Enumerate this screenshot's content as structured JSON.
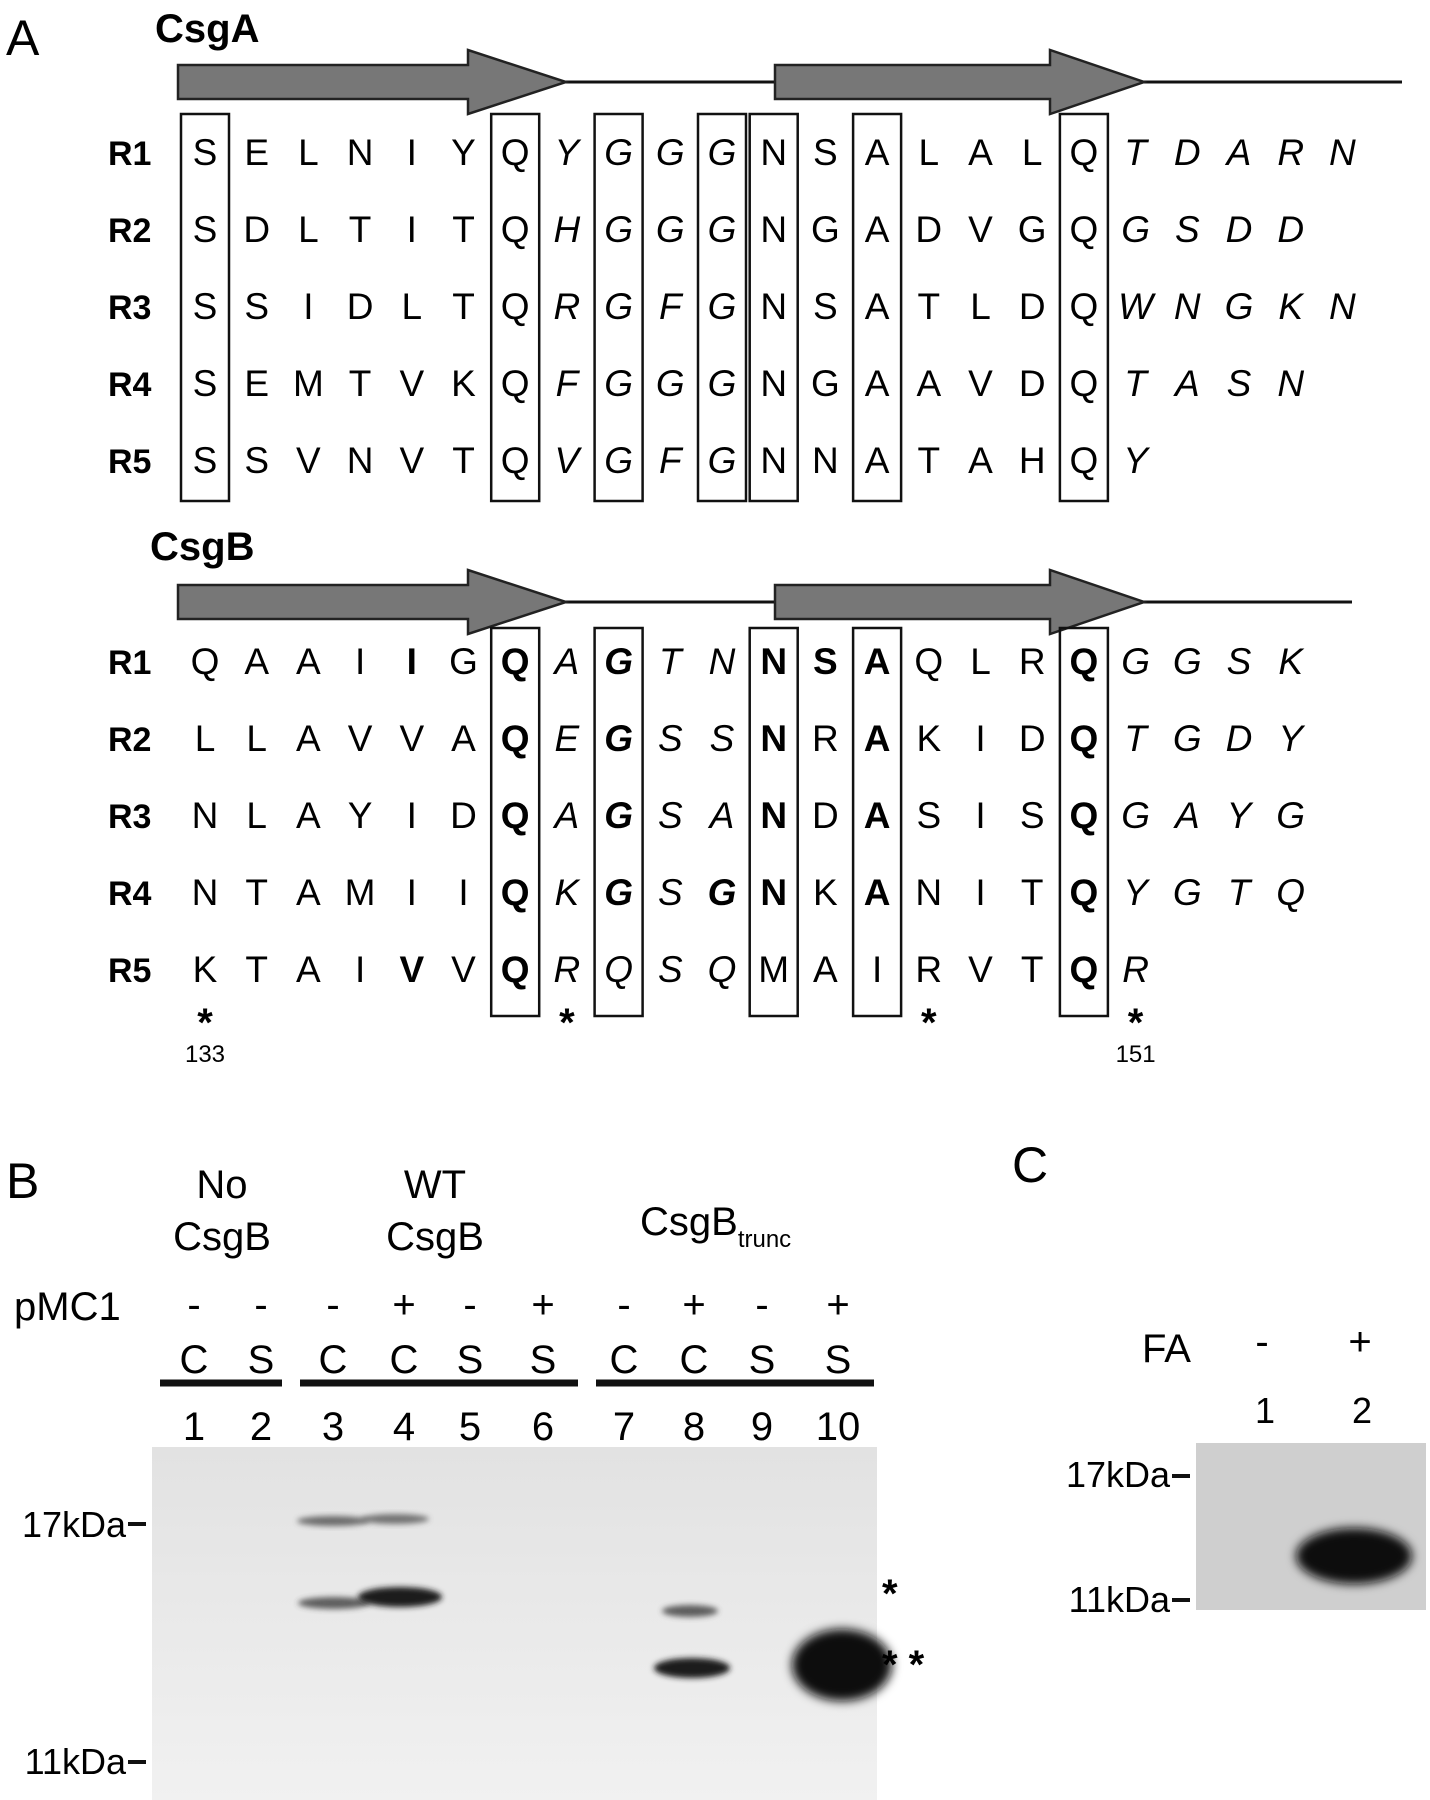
{
  "panel_a": {
    "letter": "A",
    "csga": {
      "title": "CsgA",
      "rows": [
        {
          "label": "R1",
          "residues": [
            {
              "c": "S",
              "s": "n"
            },
            {
              "c": "E",
              "s": "n"
            },
            {
              "c": "L",
              "s": "n"
            },
            {
              "c": "N",
              "s": "n"
            },
            {
              "c": "I",
              "s": "n"
            },
            {
              "c": "Y",
              "s": "n"
            },
            {
              "c": "Q",
              "s": "n"
            },
            {
              "c": "Y",
              "s": "i"
            },
            {
              "c": "G",
              "s": "i"
            },
            {
              "c": "G",
              "s": "i"
            },
            {
              "c": "G",
              "s": "i"
            },
            {
              "c": "N",
              "s": "n"
            },
            {
              "c": "S",
              "s": "n"
            },
            {
              "c": "A",
              "s": "n"
            },
            {
              "c": "L",
              "s": "n"
            },
            {
              "c": "A",
              "s": "n"
            },
            {
              "c": "L",
              "s": "n"
            },
            {
              "c": "Q",
              "s": "n"
            },
            {
              "c": "T",
              "s": "i"
            },
            {
              "c": "D",
              "s": "i"
            },
            {
              "c": "A",
              "s": "i"
            },
            {
              "c": "R",
              "s": "i"
            },
            {
              "c": "N",
              "s": "i"
            }
          ]
        },
        {
          "label": "R2",
          "residues": [
            {
              "c": "S",
              "s": "n"
            },
            {
              "c": "D",
              "s": "n"
            },
            {
              "c": "L",
              "s": "n"
            },
            {
              "c": "T",
              "s": "n"
            },
            {
              "c": "I",
              "s": "n"
            },
            {
              "c": "T",
              "s": "n"
            },
            {
              "c": "Q",
              "s": "n"
            },
            {
              "c": "H",
              "s": "i"
            },
            {
              "c": "G",
              "s": "i"
            },
            {
              "c": "G",
              "s": "i"
            },
            {
              "c": "G",
              "s": "i"
            },
            {
              "c": "N",
              "s": "n"
            },
            {
              "c": "G",
              "s": "n"
            },
            {
              "c": "A",
              "s": "n"
            },
            {
              "c": "D",
              "s": "n"
            },
            {
              "c": "V",
              "s": "n"
            },
            {
              "c": "G",
              "s": "n"
            },
            {
              "c": "Q",
              "s": "n"
            },
            {
              "c": "G",
              "s": "i"
            },
            {
              "c": "S",
              "s": "i"
            },
            {
              "c": "D",
              "s": "i"
            },
            {
              "c": "D",
              "s": "i"
            }
          ]
        },
        {
          "label": "R3",
          "residues": [
            {
              "c": "S",
              "s": "n"
            },
            {
              "c": "S",
              "s": "n"
            },
            {
              "c": "I",
              "s": "n"
            },
            {
              "c": "D",
              "s": "n"
            },
            {
              "c": "L",
              "s": "n"
            },
            {
              "c": "T",
              "s": "n"
            },
            {
              "c": "Q",
              "s": "n"
            },
            {
              "c": "R",
              "s": "i"
            },
            {
              "c": "G",
              "s": "i"
            },
            {
              "c": "F",
              "s": "i"
            },
            {
              "c": "G",
              "s": "i"
            },
            {
              "c": "N",
              "s": "n"
            },
            {
              "c": "S",
              "s": "n"
            },
            {
              "c": "A",
              "s": "n"
            },
            {
              "c": "T",
              "s": "n"
            },
            {
              "c": "L",
              "s": "n"
            },
            {
              "c": "D",
              "s": "n"
            },
            {
              "c": "Q",
              "s": "n"
            },
            {
              "c": "W",
              "s": "i"
            },
            {
              "c": "N",
              "s": "i"
            },
            {
              "c": "G",
              "s": "i"
            },
            {
              "c": "K",
              "s": "i"
            },
            {
              "c": "N",
              "s": "i"
            }
          ]
        },
        {
          "label": "R4",
          "residues": [
            {
              "c": "S",
              "s": "n"
            },
            {
              "c": "E",
              "s": "n"
            },
            {
              "c": "M",
              "s": "n"
            },
            {
              "c": "T",
              "s": "n"
            },
            {
              "c": "V",
              "s": "n"
            },
            {
              "c": "K",
              "s": "n"
            },
            {
              "c": "Q",
              "s": "n"
            },
            {
              "c": "F",
              "s": "i"
            },
            {
              "c": "G",
              "s": "i"
            },
            {
              "c": "G",
              "s": "i"
            },
            {
              "c": "G",
              "s": "i"
            },
            {
              "c": "N",
              "s": "n"
            },
            {
              "c": "G",
              "s": "n"
            },
            {
              "c": "A",
              "s": "n"
            },
            {
              "c": "A",
              "s": "n"
            },
            {
              "c": "V",
              "s": "n"
            },
            {
              "c": "D",
              "s": "n"
            },
            {
              "c": "Q",
              "s": "n"
            },
            {
              "c": "T",
              "s": "i"
            },
            {
              "c": "A",
              "s": "i"
            },
            {
              "c": "S",
              "s": "i"
            },
            {
              "c": "N",
              "s": "i"
            }
          ]
        },
        {
          "label": "R5",
          "residues": [
            {
              "c": "S",
              "s": "n"
            },
            {
              "c": "S",
              "s": "n"
            },
            {
              "c": "V",
              "s": "n"
            },
            {
              "c": "N",
              "s": "n"
            },
            {
              "c": "V",
              "s": "n"
            },
            {
              "c": "T",
              "s": "n"
            },
            {
              "c": "Q",
              "s": "n"
            },
            {
              "c": "V",
              "s": "i"
            },
            {
              "c": "G",
              "s": "i"
            },
            {
              "c": "F",
              "s": "i"
            },
            {
              "c": "G",
              "s": "i"
            },
            {
              "c": "N",
              "s": "n"
            },
            {
              "c": "N",
              "s": "n"
            },
            {
              "c": "A",
              "s": "n"
            },
            {
              "c": "T",
              "s": "n"
            },
            {
              "c": "A",
              "s": "n"
            },
            {
              "c": "H",
              "s": "n"
            },
            {
              "c": "Q",
              "s": "n"
            },
            {
              "c": "Y",
              "s": "i"
            }
          ]
        }
      ]
    },
    "csgb": {
      "title": "CsgB",
      "rows": [
        {
          "label": "R1",
          "residues": [
            {
              "c": "Q",
              "s": "n"
            },
            {
              "c": "A",
              "s": "n"
            },
            {
              "c": "A",
              "s": "n"
            },
            {
              "c": "I",
              "s": "n"
            },
            {
              "c": "I",
              "s": "b"
            },
            {
              "c": "G",
              "s": "n"
            },
            {
              "c": "Q",
              "s": "b"
            },
            {
              "c": "A",
              "s": "i"
            },
            {
              "c": "G",
              "s": "bi"
            },
            {
              "c": "T",
              "s": "i"
            },
            {
              "c": "N",
              "s": "i"
            },
            {
              "c": "N",
              "s": "b"
            },
            {
              "c": "S",
              "s": "b"
            },
            {
              "c": "A",
              "s": "b"
            },
            {
              "c": "Q",
              "s": "n"
            },
            {
              "c": "L",
              "s": "n"
            },
            {
              "c": "R",
              "s": "n"
            },
            {
              "c": "Q",
              "s": "b"
            },
            {
              "c": "G",
              "s": "i"
            },
            {
              "c": "G",
              "s": "i"
            },
            {
              "c": "S",
              "s": "i"
            },
            {
              "c": "K",
              "s": "i"
            }
          ]
        },
        {
          "label": "R2",
          "residues": [
            {
              "c": "L",
              "s": "n"
            },
            {
              "c": "L",
              "s": "n"
            },
            {
              "c": "A",
              "s": "n"
            },
            {
              "c": "V",
              "s": "n"
            },
            {
              "c": "V",
              "s": "n"
            },
            {
              "c": "A",
              "s": "n"
            },
            {
              "c": "Q",
              "s": "b"
            },
            {
              "c": "E",
              "s": "i"
            },
            {
              "c": "G",
              "s": "bi"
            },
            {
              "c": "S",
              "s": "i"
            },
            {
              "c": "S",
              "s": "i"
            },
            {
              "c": "N",
              "s": "b"
            },
            {
              "c": "R",
              "s": "n"
            },
            {
              "c": "A",
              "s": "b"
            },
            {
              "c": "K",
              "s": "n"
            },
            {
              "c": "I",
              "s": "n"
            },
            {
              "c": "D",
              "s": "n"
            },
            {
              "c": "Q",
              "s": "b"
            },
            {
              "c": "T",
              "s": "i"
            },
            {
              "c": "G",
              "s": "i"
            },
            {
              "c": "D",
              "s": "i"
            },
            {
              "c": "Y",
              "s": "i"
            }
          ]
        },
        {
          "label": "R3",
          "residues": [
            {
              "c": "N",
              "s": "n"
            },
            {
              "c": "L",
              "s": "n"
            },
            {
              "c": "A",
              "s": "n"
            },
            {
              "c": "Y",
              "s": "n"
            },
            {
              "c": "I",
              "s": "n"
            },
            {
              "c": "D",
              "s": "n"
            },
            {
              "c": "Q",
              "s": "b"
            },
            {
              "c": "A",
              "s": "i"
            },
            {
              "c": "G",
              "s": "bi"
            },
            {
              "c": "S",
              "s": "i"
            },
            {
              "c": "A",
              "s": "i"
            },
            {
              "c": "N",
              "s": "b"
            },
            {
              "c": "D",
              "s": "n"
            },
            {
              "c": "A",
              "s": "b"
            },
            {
              "c": "S",
              "s": "n"
            },
            {
              "c": "I",
              "s": "n"
            },
            {
              "c": "S",
              "s": "n"
            },
            {
              "c": "Q",
              "s": "b"
            },
            {
              "c": "G",
              "s": "i"
            },
            {
              "c": "A",
              "s": "i"
            },
            {
              "c": "Y",
              "s": "i"
            },
            {
              "c": "G",
              "s": "i"
            }
          ]
        },
        {
          "label": "R4",
          "residues": [
            {
              "c": "N",
              "s": "n"
            },
            {
              "c": "T",
              "s": "n"
            },
            {
              "c": "A",
              "s": "n"
            },
            {
              "c": "M",
              "s": "n"
            },
            {
              "c": "I",
              "s": "n"
            },
            {
              "c": "I",
              "s": "n"
            },
            {
              "c": "Q",
              "s": "b"
            },
            {
              "c": "K",
              "s": "i"
            },
            {
              "c": "G",
              "s": "bi"
            },
            {
              "c": "S",
              "s": "i"
            },
            {
              "c": "G",
              "s": "bi"
            },
            {
              "c": "N",
              "s": "b"
            },
            {
              "c": "K",
              "s": "n"
            },
            {
              "c": "A",
              "s": "b"
            },
            {
              "c": "N",
              "s": "n"
            },
            {
              "c": "I",
              "s": "n"
            },
            {
              "c": "T",
              "s": "n"
            },
            {
              "c": "Q",
              "s": "b"
            },
            {
              "c": "Y",
              "s": "i"
            },
            {
              "c": "G",
              "s": "i"
            },
            {
              "c": "T",
              "s": "i"
            },
            {
              "c": "Q",
              "s": "i"
            }
          ]
        },
        {
          "label": "R5",
          "residues": [
            {
              "c": "K",
              "s": "n"
            },
            {
              "c": "T",
              "s": "n"
            },
            {
              "c": "A",
              "s": "n"
            },
            {
              "c": "I",
              "s": "n"
            },
            {
              "c": "V",
              "s": "b"
            },
            {
              "c": "V",
              "s": "n"
            },
            {
              "c": "Q",
              "s": "b"
            },
            {
              "c": "R",
              "s": "i"
            },
            {
              "c": "Q",
              "s": "i"
            },
            {
              "c": "S",
              "s": "i"
            },
            {
              "c": "Q",
              "s": "i"
            },
            {
              "c": "M",
              "s": "n"
            },
            {
              "c": "A",
              "s": "n"
            },
            {
              "c": "I",
              "s": "n"
            },
            {
              "c": "R",
              "s": "n"
            },
            {
              "c": "V",
              "s": "n"
            },
            {
              "c": "T",
              "s": "n"
            },
            {
              "c": "Q",
              "s": "b"
            },
            {
              "c": "R",
              "s": "i"
            }
          ]
        }
      ],
      "asterisk": "*",
      "asterisk_columns": [
        0,
        7,
        14,
        18
      ],
      "position_labels": [
        {
          "col": 0,
          "text": "133"
        },
        {
          "col": 18,
          "text": "151"
        }
      ]
    }
  },
  "panel_b": {
    "letter": "B",
    "groups": [
      {
        "label_line1": "No",
        "label_line2": "CsgB"
      },
      {
        "label_line1": "WT",
        "label_line2": "CsgB"
      },
      {
        "label_main": "CsgB",
        "label_sub": "trunc"
      }
    ],
    "pmc1_label": "pMC1",
    "pmc1": [
      "-",
      "-",
      "-",
      "+",
      "-",
      "+",
      "-",
      "+",
      "-",
      "+"
    ],
    "fractions": [
      "C",
      "S",
      "C",
      "C",
      "S",
      "S",
      "C",
      "C",
      "S",
      "S"
    ],
    "lanes": [
      "1",
      "2",
      "3",
      "4",
      "5",
      "6",
      "7",
      "8",
      "9",
      "10"
    ],
    "markers": [
      "17kDa",
      "11kDa"
    ],
    "band_marks": [
      "*",
      "* *"
    ]
  },
  "panel_c": {
    "letter": "C",
    "fa_label": "FA",
    "fa": [
      "-",
      "+"
    ],
    "lanes": [
      "1",
      "2"
    ],
    "markers": [
      "17kDa",
      "11kDa"
    ]
  }
}
